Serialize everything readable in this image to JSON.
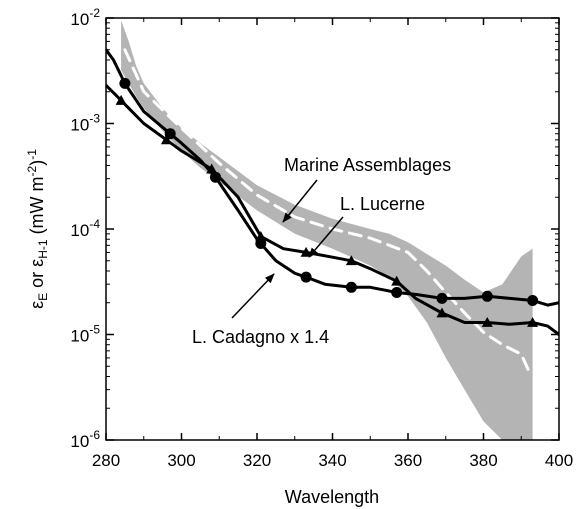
{
  "chart_data": {
    "type": "line",
    "xlabel": "Wavelength",
    "ylabel": {
      "eps": "ε",
      "sub_e": "E",
      "or": " or ",
      "sub_h": "H-1",
      "unit_open": " (mW m",
      "unit_exp": "-2",
      "unit_close": ")",
      "outer_exp": "-1"
    },
    "xlim": [
      280,
      400
    ],
    "ylim": [
      1e-06,
      0.01
    ],
    "yscale": "log",
    "x_ticks": [
      "280",
      "300",
      "320",
      "340",
      "360",
      "380",
      "400"
    ],
    "y_ticks": [
      {
        "value": 0.01,
        "base": "10",
        "exp": "-2"
      },
      {
        "value": 0.001,
        "base": "10",
        "exp": "-3"
      },
      {
        "value": 0.0001,
        "base": "10",
        "exp": "-4"
      },
      {
        "value": 1e-05,
        "base": "10",
        "exp": "-5"
      },
      {
        "value": 1e-06,
        "base": "10",
        "exp": "-6"
      }
    ],
    "band": {
      "color": "#b4b4b4",
      "x": [
        284,
        286,
        288,
        290,
        295,
        300,
        305,
        310,
        320,
        330,
        340,
        350,
        355,
        360,
        365,
        370,
        375,
        380,
        385,
        390,
        393
      ],
      "upper": [
        0.0095,
        0.006,
        0.0035,
        0.0024,
        0.0014,
        0.0009,
        0.00065,
        0.00048,
        0.00026,
        0.00017,
        0.000125,
        0.0001,
        9e-05,
        7.5e-05,
        5.8e-05,
        4.5e-05,
        3.3e-05,
        2.5e-05,
        3e-05,
        5.5e-05,
        6.5e-05
      ],
      "lower": [
        0.0032,
        0.0024,
        0.0018,
        0.0014,
        0.00085,
        0.00055,
        0.00038,
        0.00028,
        0.00015,
        9e-05,
        6.5e-05,
        4.5e-05,
        3.5e-05,
        2.3e-05,
        1.3e-05,
        6e-06,
        3e-06,
        1.5e-06,
        1e-06,
        1e-06,
        1e-06
      ]
    },
    "series": [
      {
        "name": "Marine Assemblages",
        "color": "#ffffff",
        "dashed": true,
        "marker": "none",
        "x": [
          285,
          290,
          300,
          310,
          320,
          330,
          340,
          350,
          360,
          365,
          370,
          375,
          380,
          385,
          390,
          392
        ],
        "y": [
          0.005,
          0.002,
          0.0009,
          0.00042,
          0.00021,
          0.00013,
          0.0001,
          8.2e-05,
          6e-05,
          4e-05,
          2.5e-05,
          1.6e-05,
          1.05e-05,
          8e-06,
          6.5e-06,
          4.5e-06
        ]
      },
      {
        "name": "L. Cadagno x 1.4",
        "color": "#000000",
        "dashed": false,
        "marker": "circle",
        "x": [
          280,
          282,
          285,
          290,
          297,
          300,
          305,
          309,
          315,
          320,
          325,
          330,
          333,
          338,
          345,
          350,
          357,
          362,
          369,
          375,
          381,
          387,
          393,
          397,
          400
        ],
        "y": [
          0.005,
          0.004,
          0.0024,
          0.0013,
          0.0008,
          0.00065,
          0.00045,
          0.00031,
          0.00015,
          8e-05,
          5e-05,
          3.8e-05,
          3.5e-05,
          3e-05,
          2.8e-05,
          2.8e-05,
          2.5e-05,
          2.4e-05,
          2.2e-05,
          2.2e-05,
          2.3e-05,
          2.2e-05,
          2.1e-05,
          1.9e-05,
          2e-05
        ],
        "markers_x": [
          285,
          297,
          309,
          321,
          333,
          345,
          357,
          369,
          381,
          393
        ]
      },
      {
        "name": "L. Lucerne",
        "color": "#000000",
        "dashed": false,
        "marker": "triangle",
        "x": [
          280,
          283,
          290,
          296,
          300,
          308,
          315,
          321,
          327,
          333,
          340,
          345,
          350,
          357,
          362,
          369,
          375,
          381,
          387,
          393,
          397,
          400
        ],
        "y": [
          0.0023,
          0.0018,
          0.001,
          0.0007,
          0.00055,
          0.00037,
          0.0002,
          8.5e-05,
          6.5e-05,
          6e-05,
          5.4e-05,
          5e-05,
          4.2e-05,
          3.2e-05,
          2.2e-05,
          1.6e-05,
          1.3e-05,
          1.3e-05,
          1.25e-05,
          1.3e-05,
          1.2e-05,
          1e-05
        ],
        "markers_x": [
          284,
          296,
          308,
          321,
          333,
          345,
          357,
          369,
          381,
          393
        ]
      }
    ],
    "annotations": [
      {
        "text": "Marine Assemblages"
      },
      {
        "text": "L. Lucerne"
      },
      {
        "text": "L. Cadagno x 1.4"
      }
    ]
  }
}
